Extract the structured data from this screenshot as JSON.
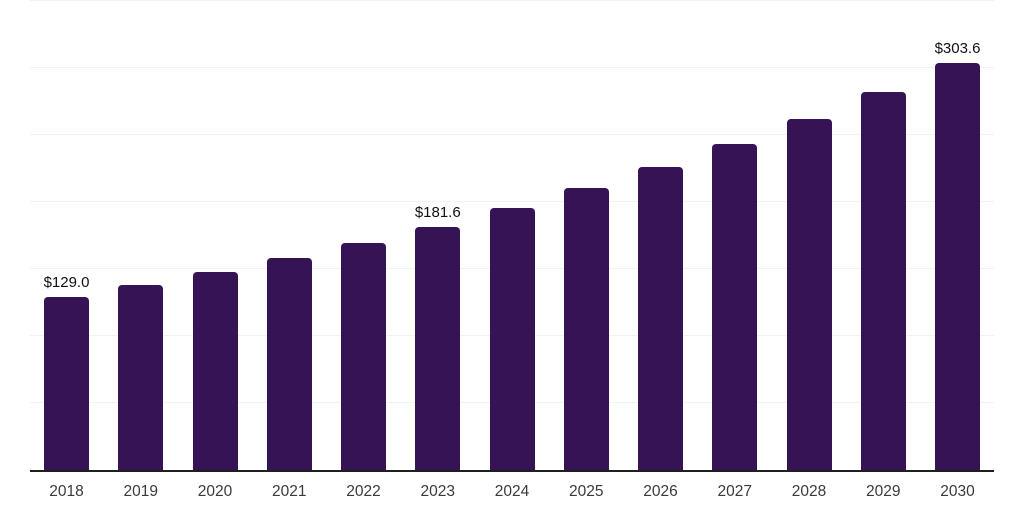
{
  "chart_data": {
    "type": "bar",
    "title": "",
    "xlabel": "",
    "ylabel": "",
    "categories": [
      "2018",
      "2019",
      "2020",
      "2021",
      "2022",
      "2023",
      "2024",
      "2025",
      "2026",
      "2027",
      "2028",
      "2029",
      "2030"
    ],
    "values": [
      129.0,
      138.2,
      148.0,
      158.5,
      169.7,
      181.6,
      195.5,
      210.2,
      226.5,
      243.6,
      262.0,
      282.0,
      303.6
    ],
    "value_labels": {
      "2018": "$129.0",
      "2023": "$181.6",
      "2030": "$303.6"
    },
    "ylim": [
      0,
      350
    ],
    "gridline_step": 50,
    "grid": true,
    "legend": false,
    "y_tick_labels_visible": false,
    "colors": {
      "bar": "#361354",
      "axis_line": "#1f1f1f",
      "gridline": "#f2f2f2",
      "data_label": "#111111",
      "x_tick_label": "#3a3a3a",
      "background": "#ffffff"
    }
  }
}
